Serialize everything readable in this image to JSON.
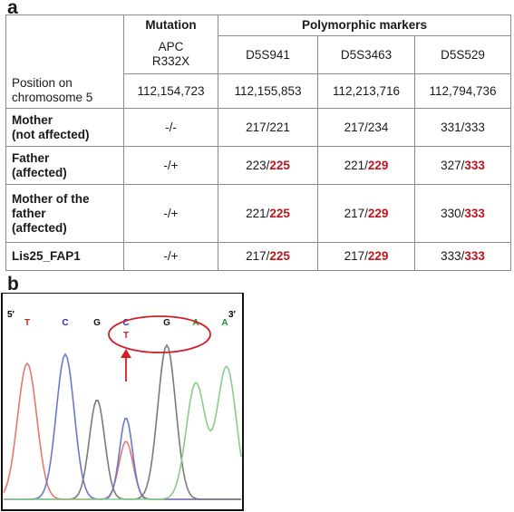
{
  "panel_a": {
    "label": "a",
    "header": {
      "mutation": "Mutation",
      "markers": "Polymorphic markers"
    },
    "subheader": {
      "mutation": "APC\nR332X",
      "m1": "D5S941",
      "m2": "D5S3463",
      "m3": "D5S529"
    },
    "position_row": {
      "label": "Position on\nchromosome 5",
      "mutation": "112,154,723",
      "m1": "112,155,853",
      "m2": "112,213,716",
      "m3": "112,794,736"
    },
    "rows": [
      {
        "name": "Mother\n(not affected)",
        "mutation": "-/-",
        "m1a": "217/221",
        "m1b": "",
        "m2a": "217/234",
        "m2b": "",
        "m3a": "331/333",
        "m3b": ""
      },
      {
        "name": "Father\n(affected)",
        "mutation": "-/+",
        "m1a": "223/",
        "m1b": "225",
        "m2a": "221/",
        "m2b": "229",
        "m3a": "327/",
        "m3b": "333"
      },
      {
        "name": "Mother of the\nfather\n(affected)",
        "mutation": "-/+",
        "m1a": "221/",
        "m1b": "225",
        "m2a": "217/",
        "m2b": "229",
        "m3a": "330/",
        "m3b": "333"
      },
      {
        "name": "Lis25_FAP1",
        "mutation": "-/+",
        "m1a": "217/",
        "m1b": "225",
        "m2a": "217/",
        "m2b": "229",
        "m3a": "333/",
        "m3b": "333"
      }
    ]
  },
  "panel_b": {
    "label": "b",
    "end5": "5'",
    "end3": "3'",
    "bases": [
      {
        "letter": "T",
        "color": "#d02020"
      },
      {
        "letter": "C",
        "color": "#2a2ab0"
      },
      {
        "letter": "G",
        "color": "#111111"
      },
      {
        "letter": "C",
        "color": "#2a2ab0"
      },
      {
        "letter": "T",
        "color": "#d02020"
      },
      {
        "letter": "G",
        "color": "#111111"
      },
      {
        "letter": "A",
        "color": "#2a8a2a"
      },
      {
        "letter": "A",
        "color": "#2a8a2a"
      }
    ],
    "colors": {
      "T": "#e07a70",
      "C": "#6a78c8",
      "G": "#7a7a7a",
      "A": "#8acc88",
      "highlight": "#d0202a"
    }
  }
}
